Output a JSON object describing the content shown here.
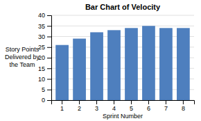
{
  "chart_data": {
    "type": "bar",
    "title": "Bar Chart of Velocity",
    "xlabel": "Sprint Number",
    "ylabel": "Story Points\nDelivered by\nthe Team",
    "categories": [
      1,
      2,
      3,
      4,
      5,
      6,
      7,
      8
    ],
    "values": [
      26,
      29,
      32,
      33,
      34,
      35,
      34,
      34
    ],
    "color": "#4E7FBE",
    "ylim": [
      0,
      40
    ],
    "yticks": [
      0,
      5,
      10,
      15,
      20,
      25,
      30,
      35,
      40
    ],
    "grid": true
  }
}
